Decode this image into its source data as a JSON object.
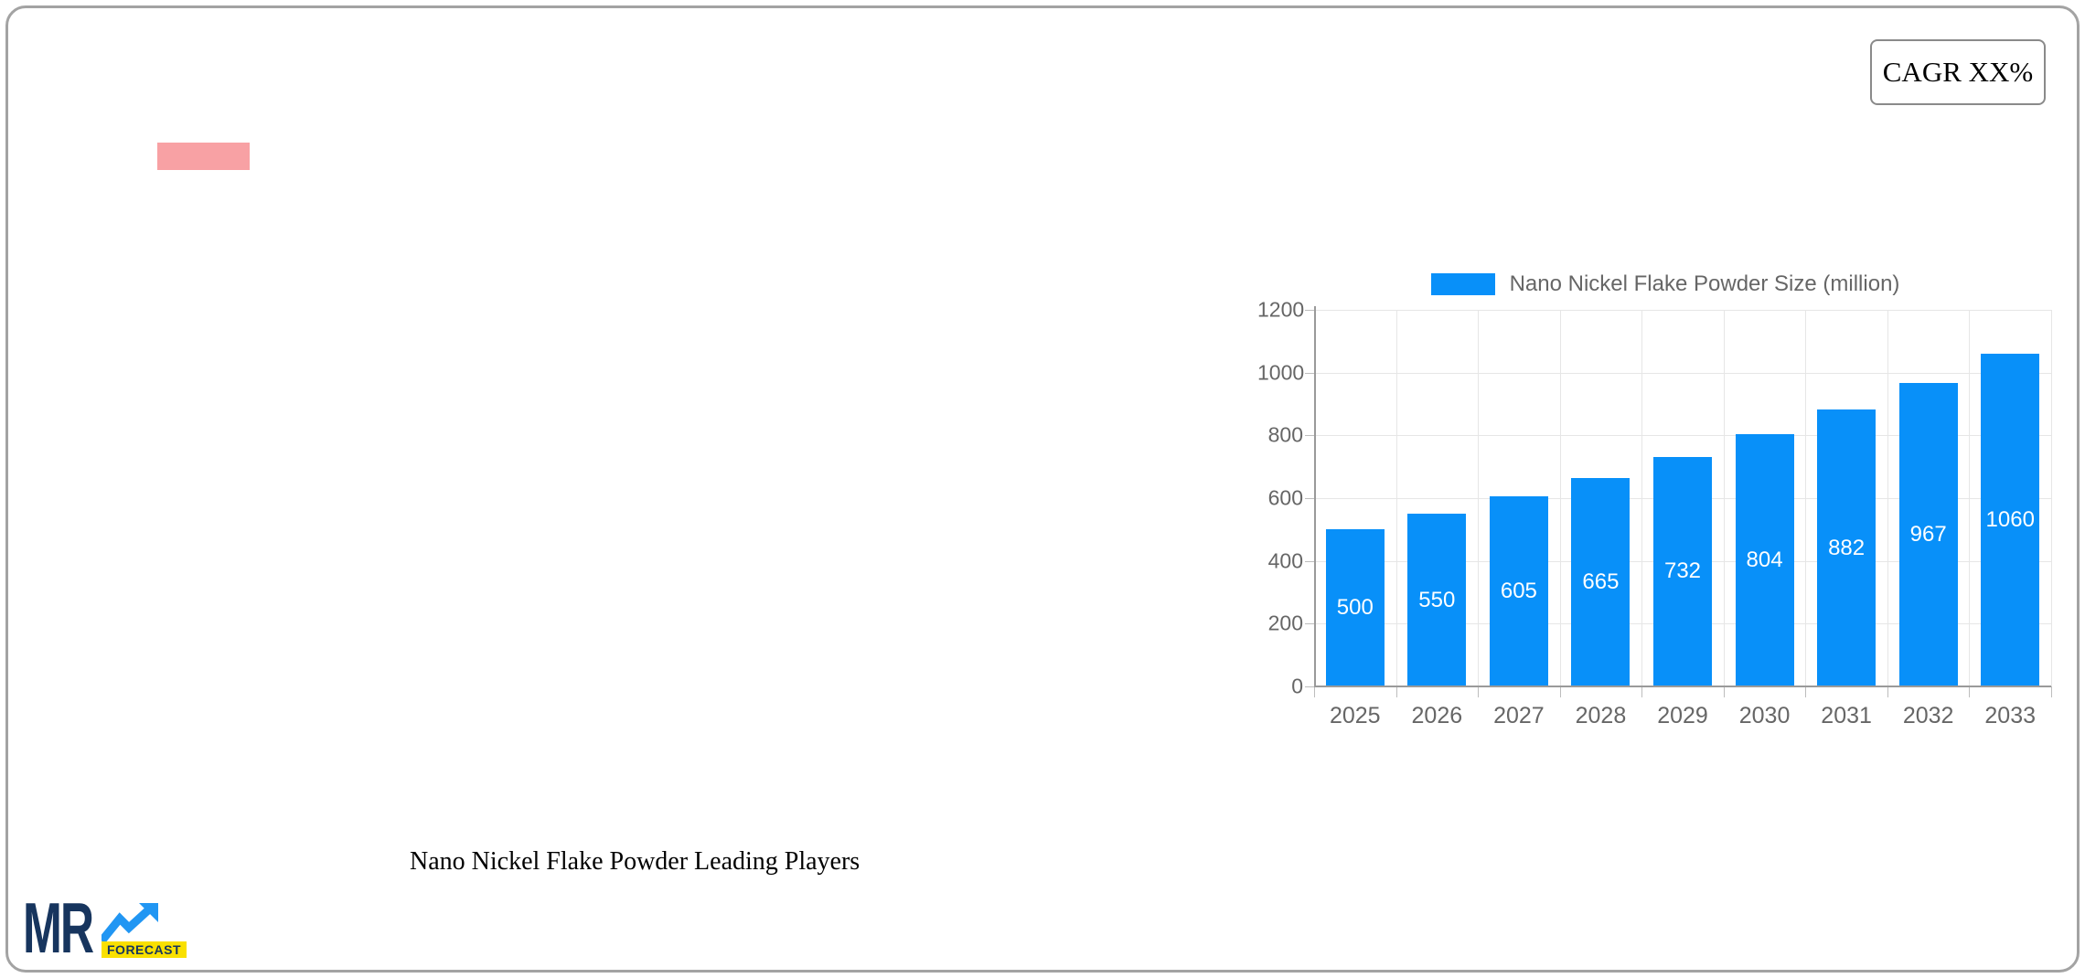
{
  "cagr_box": {
    "label": "CAGR XX%"
  },
  "decor": {
    "pink_bar_color": "#f8a1a4"
  },
  "chart_data": {
    "type": "bar",
    "legend_label": "Nano Nickel Flake Powder Size (million)",
    "legend_position": "top",
    "categories": [
      "2025",
      "2026",
      "2027",
      "2028",
      "2029",
      "2030",
      "2031",
      "2032",
      "2033"
    ],
    "values": [
      500,
      550,
      605,
      665,
      732,
      804,
      882,
      967,
      1060
    ],
    "ylim": [
      0,
      1200
    ],
    "yticks": [
      0,
      200,
      400,
      600,
      800,
      1000,
      1200
    ],
    "bar_color": "#0890f9",
    "grid": true,
    "value_labels_color": "#ffffff",
    "tick_label_color": "#666666"
  },
  "footer": {
    "title": "Nano Nickel Flake Powder Leading Players"
  },
  "logo": {
    "text": "MR",
    "badge": "FORECAST",
    "navy": "#17355e",
    "arrow_blue": "#2196f3",
    "badge_yellow": "#f9e000"
  }
}
